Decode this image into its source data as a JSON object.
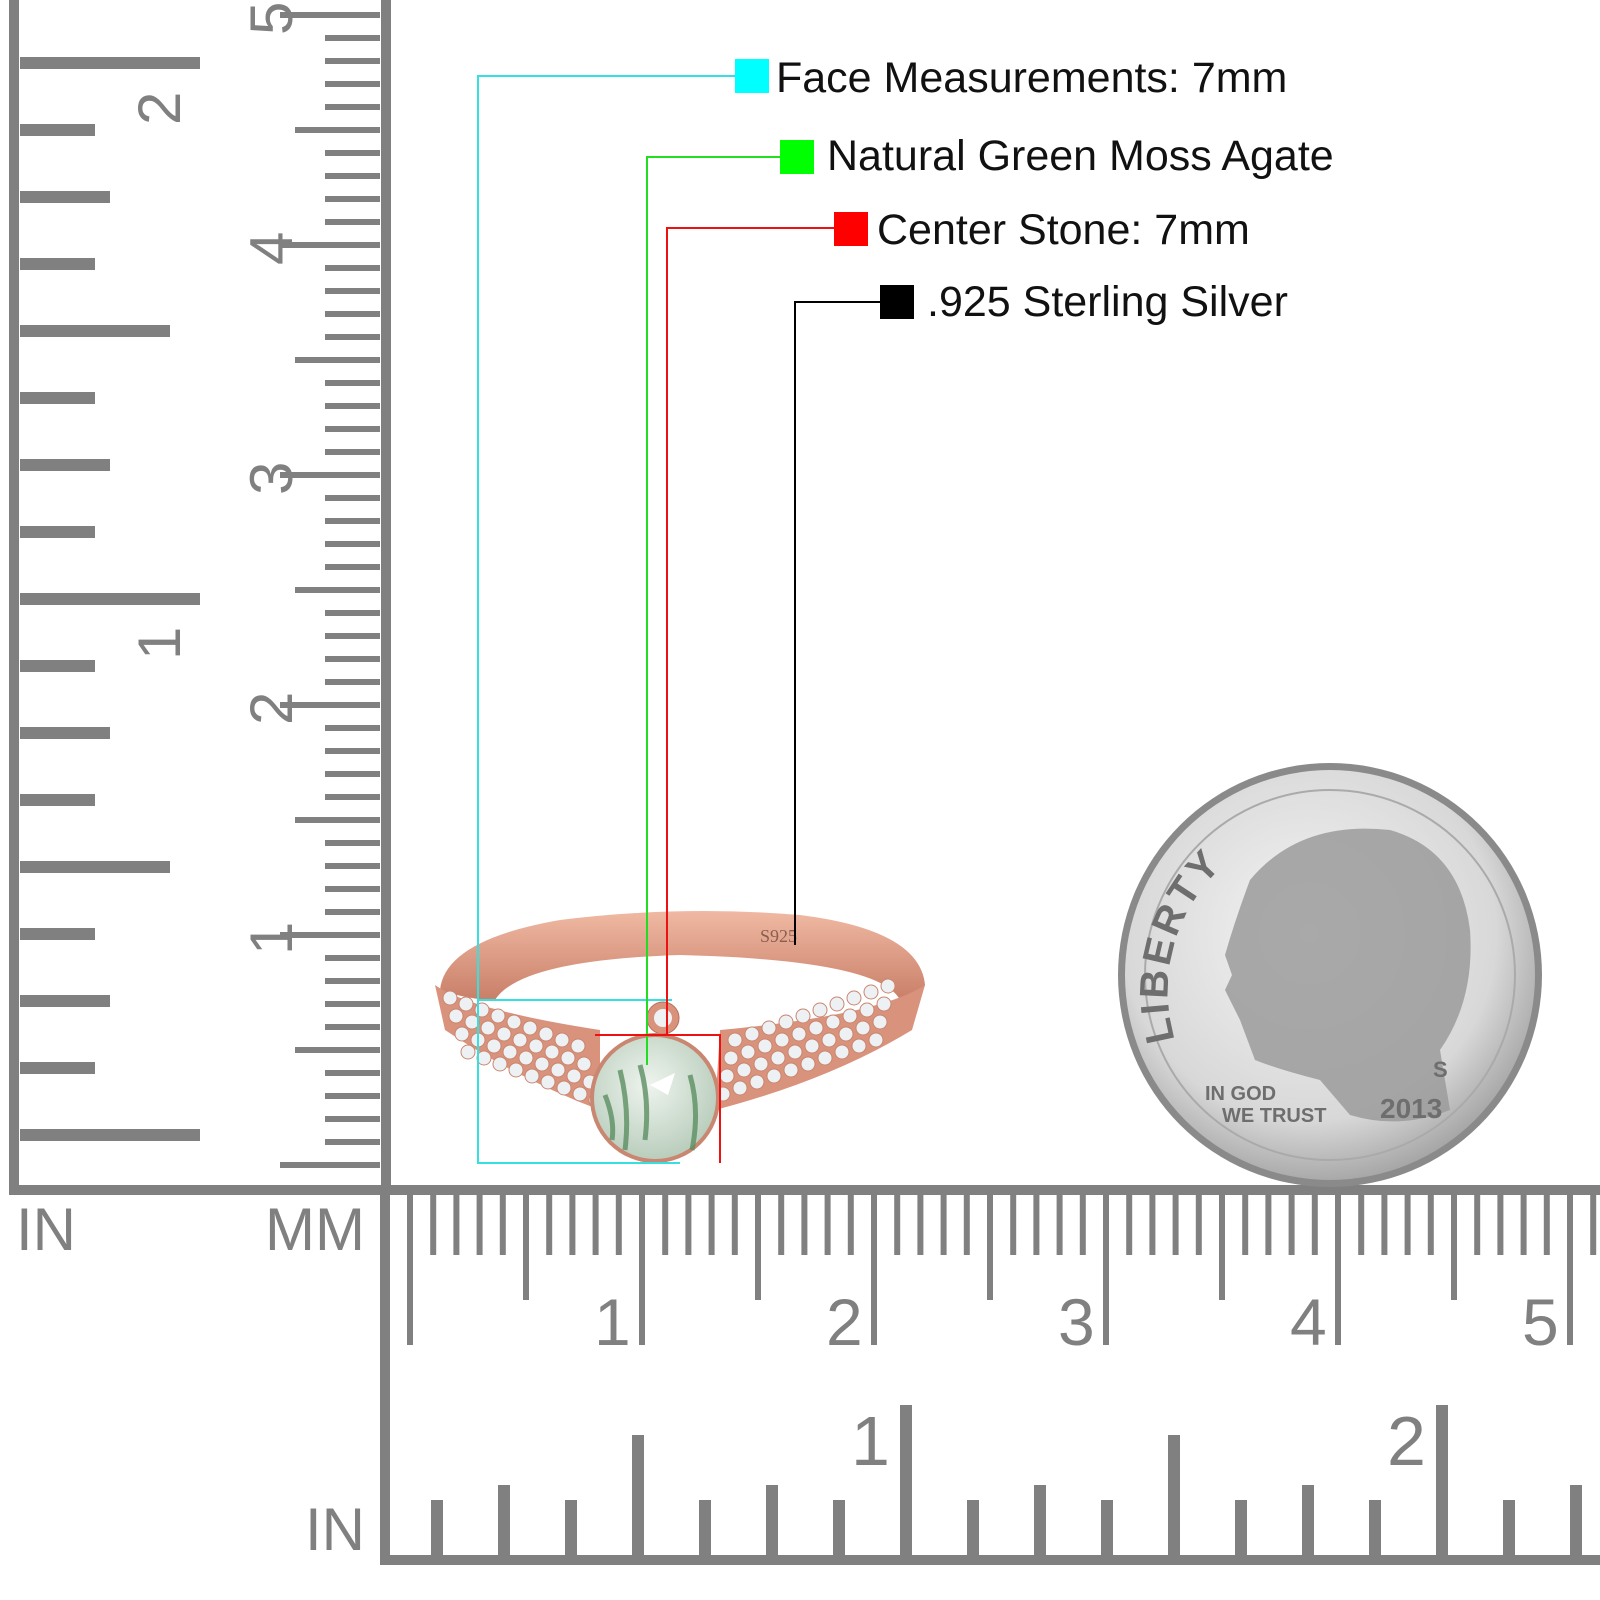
{
  "legend": [
    {
      "label": "Face Measurements: 7mm",
      "color": "#00ffff"
    },
    {
      "label": "Natural Green Moss Agate",
      "color": "#00ff00"
    },
    {
      "label": "Center Stone: 7mm",
      "color": "#ff0000"
    },
    {
      "label": ".925 Sterling Silver",
      "color": "#000000"
    }
  ],
  "ring": {
    "stamp": "S925",
    "metal_color": "#e0a08a",
    "stone_color": "#cfe0d2"
  },
  "coin": {
    "motto_top": "LIBERTY",
    "motto_line1": "IN GOD",
    "motto_line2": "WE TRUST",
    "year": "2013",
    "mint_mark": "S"
  },
  "rulers": {
    "vertical": {
      "left_unit": "IN",
      "right_unit": "MM",
      "mm_labels": [
        "1",
        "2",
        "3",
        "4",
        "5"
      ],
      "in_labels": [
        "1",
        "2"
      ]
    },
    "horizontal": {
      "top_labels": [
        "1",
        "2",
        "3",
        "4",
        "5"
      ],
      "bottom_labels": [
        "1",
        "2"
      ],
      "bottom_unit": "IN"
    },
    "color": "#808080"
  }
}
